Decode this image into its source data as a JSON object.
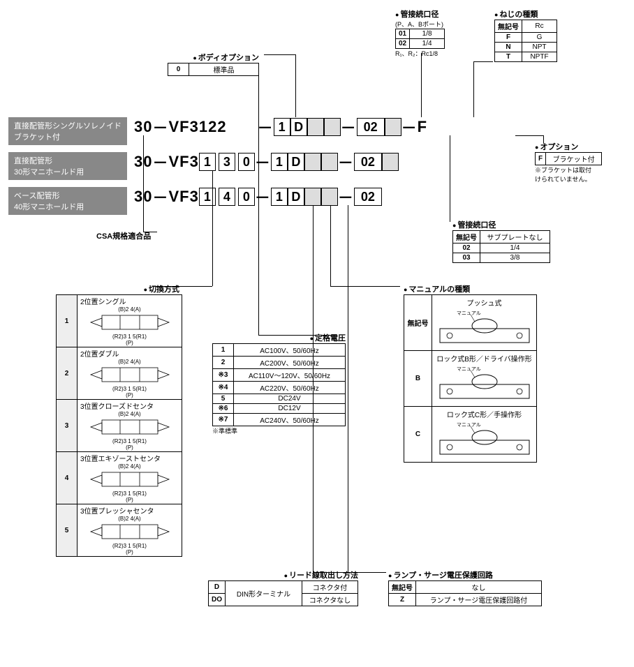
{
  "labels": {
    "type1": "直接配管形シングルソレノイド\nブラケット付",
    "type2": "直接配管形\n30形マニホールド用",
    "type3": "ベース配管形\n40形マニホールド用",
    "csa": "CSA規格適合品"
  },
  "body_option": {
    "title": "ボディオプション",
    "rows": [
      [
        "0",
        "標準品"
      ]
    ]
  },
  "port_size_pab": {
    "title": "管接続口径",
    "subtitle": "(P、A、Bポート)",
    "rows": [
      [
        "01",
        "1/8"
      ],
      [
        "02",
        "1/4"
      ]
    ],
    "note": "R₁、R₂：Rc1/8"
  },
  "thread_type": {
    "title": "ねじの種類",
    "rows": [
      [
        "無記号",
        "Rc"
      ],
      [
        "F",
        "G"
      ],
      [
        "N",
        "NPT"
      ],
      [
        "T",
        "NPTF"
      ]
    ]
  },
  "option": {
    "title": "オプション",
    "rows": [
      [
        "F",
        "ブラケット付"
      ]
    ],
    "note": "※ブラケットは取付\nけられていません。"
  },
  "port_size_sub": {
    "title": "管接続口径",
    "rows": [
      [
        "無記号",
        "サブプレートなし"
      ],
      [
        "02",
        "1/4"
      ],
      [
        "03",
        "3/8"
      ]
    ]
  },
  "part_rows": {
    "r1": {
      "prefix": "30",
      "base": "VF3122",
      "opts1": [
        "1",
        "D",
        "",
        ""
      ],
      "opts2": [
        "02",
        ""
      ],
      "suffix": "F"
    },
    "r2": {
      "prefix": "30",
      "base": "VF3",
      "mid": [
        "1",
        "3",
        "0"
      ],
      "opts1": [
        "1",
        "D",
        "",
        ""
      ],
      "opts2": [
        "02"
      ]
    },
    "r3": {
      "prefix": "30",
      "base": "VF3",
      "mid": [
        "1",
        "4",
        "0"
      ],
      "opts1": [
        "1",
        "D",
        "",
        ""
      ],
      "opts2": [
        "02"
      ]
    }
  },
  "switching": {
    "title": "切換方式",
    "rows": [
      {
        "code": "1",
        "name": "2位置シングル",
        "ports": "(B)2  4(A)",
        "bottom": "(R2)3 1 5(R1)\n(P)"
      },
      {
        "code": "2",
        "name": "2位置ダブル",
        "ports": "(B)2  4(A)",
        "bottom": "(R2)3 1 5(R1)\n(P)"
      },
      {
        "code": "3",
        "name": "3位置クローズドセンタ",
        "ports": "(B)2  4(A)",
        "bottom": "(R2)3 1 5(R1)\n(P)"
      },
      {
        "code": "4",
        "name": "3位置エキゾーストセンタ",
        "ports": "(B)2  4(A)",
        "bottom": "(R2)3 1 5(R1)\n(P)"
      },
      {
        "code": "5",
        "name": "3位置プレッシャセンタ",
        "ports": "(B)2  4(A)",
        "bottom": "(R2)3 1 5(R1)\n(P)"
      }
    ]
  },
  "voltage": {
    "title": "定格電圧",
    "rows": [
      [
        "1",
        "AC100V、50/60Hz"
      ],
      [
        "2",
        "AC200V、50/60Hz"
      ],
      [
        "※3",
        "AC110V～120V、50/60Hz"
      ],
      [
        "※4",
        "AC220V、50/60Hz"
      ],
      [
        "5",
        "DC24V"
      ],
      [
        "※6",
        "DC12V"
      ],
      [
        "※7",
        "AC240V、50/60Hz"
      ]
    ],
    "note": "※準標準"
  },
  "lead_wire": {
    "title": "リード線取出し方法",
    "rows": [
      [
        "D",
        "DIN形ターミナル",
        "コネクタ付"
      ],
      [
        "DO",
        "",
        "コネクタなし"
      ]
    ]
  },
  "surge": {
    "title": "ランプ・サージ電圧保護回路",
    "rows": [
      [
        "無記号",
        "なし"
      ],
      [
        "Z",
        "ランプ・サージ電圧保護回路付"
      ]
    ]
  },
  "manual": {
    "title": "マニュアルの種類",
    "rows": [
      {
        "code": "無記号",
        "name": "プッシュ式",
        "sub": "マニュアル"
      },
      {
        "code": "B",
        "name": "ロック式B形／ドライバ操作形",
        "sub": "マニュアル"
      },
      {
        "code": "C",
        "name": "ロック式C形／手操作形",
        "sub": "マニュアル"
      }
    ]
  }
}
